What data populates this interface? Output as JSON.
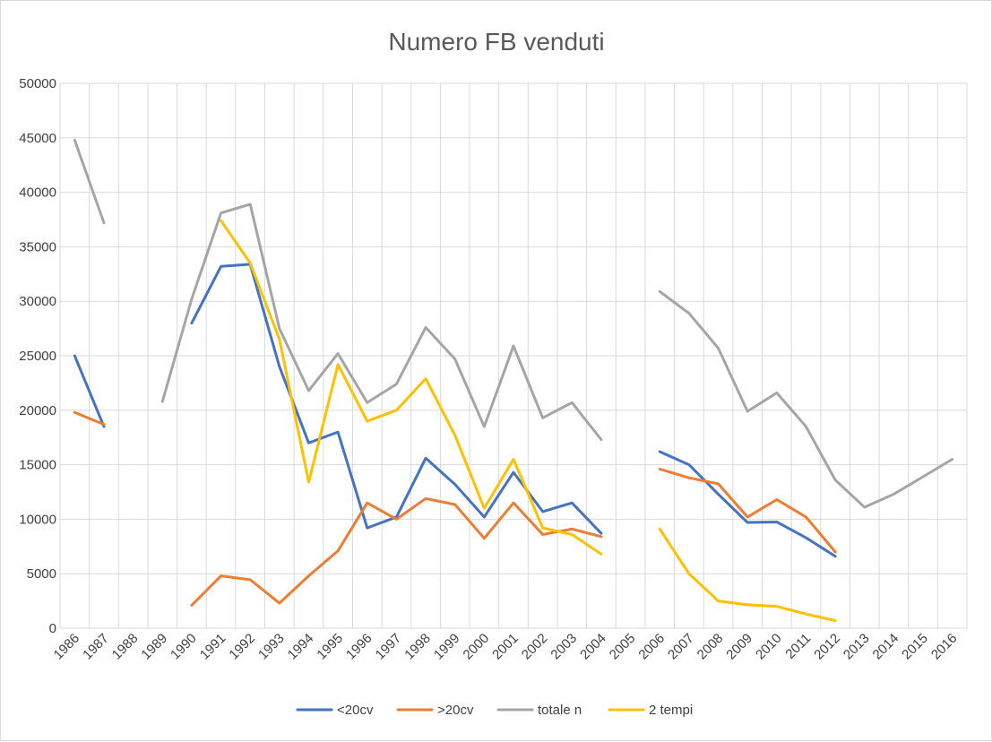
{
  "chart_data": {
    "type": "line",
    "title": "Numero FB venduti",
    "x": [
      "1986",
      "1987",
      "1988",
      "1989",
      "1990",
      "1991",
      "1992",
      "1993",
      "1994",
      "1995",
      "1996",
      "1997",
      "1998",
      "1999",
      "2000",
      "2001",
      "2002",
      "2003",
      "2004",
      "2005",
      "2006",
      "2007",
      "2008",
      "2009",
      "2010",
      "2011",
      "2012",
      "2013",
      "2014",
      "2015",
      "2016"
    ],
    "ylim": [
      0,
      50000
    ],
    "yticks": [
      "0",
      "5000",
      "10000",
      "15000",
      "20000",
      "25000",
      "30000",
      "35000",
      "40000",
      "45000",
      "50000"
    ],
    "grid": true,
    "legend_position": "bottom",
    "series": [
      {
        "name": "<20cv",
        "color": "#4472c4",
        "values": [
          25000,
          18500,
          null,
          null,
          28000,
          33200,
          33400,
          24000,
          17000,
          18000,
          9200,
          10200,
          15600,
          13200,
          10200,
          14300,
          10700,
          11500,
          8700,
          null,
          16200,
          15000,
          12300,
          9700,
          9750,
          8300,
          6600,
          null,
          null,
          null,
          null
        ]
      },
      {
        "name": ">20cv",
        "color": "#ed7d31",
        "values": [
          19800,
          18700,
          null,
          null,
          2100,
          4800,
          4450,
          2300,
          4800,
          7100,
          11500,
          10000,
          11900,
          11350,
          8250,
          11500,
          8600,
          9100,
          8400,
          null,
          14600,
          13800,
          13250,
          10200,
          11800,
          10200,
          7000,
          null,
          null,
          null,
          null
        ]
      },
      {
        "name": "totale n",
        "color": "#a5a5a5",
        "values": [
          44800,
          37200,
          null,
          20800,
          30200,
          38100,
          38900,
          27500,
          21800,
          25200,
          20700,
          22400,
          27600,
          24700,
          18500,
          25900,
          19300,
          20700,
          17300,
          null,
          30900,
          28900,
          25700,
          19900,
          21600,
          18500,
          13600,
          11100,
          12300,
          13900,
          15500
        ]
      },
      {
        "name": "2 tempi",
        "color": "#ffc000",
        "values": [
          null,
          null,
          null,
          null,
          null,
          37400,
          33500,
          26500,
          13400,
          24200,
          19000,
          20000,
          22900,
          17700,
          11000,
          15500,
          9200,
          8600,
          6800,
          null,
          9100,
          5000,
          2500,
          2150,
          2000,
          1300,
          700,
          null,
          null,
          null,
          null
        ]
      }
    ]
  }
}
